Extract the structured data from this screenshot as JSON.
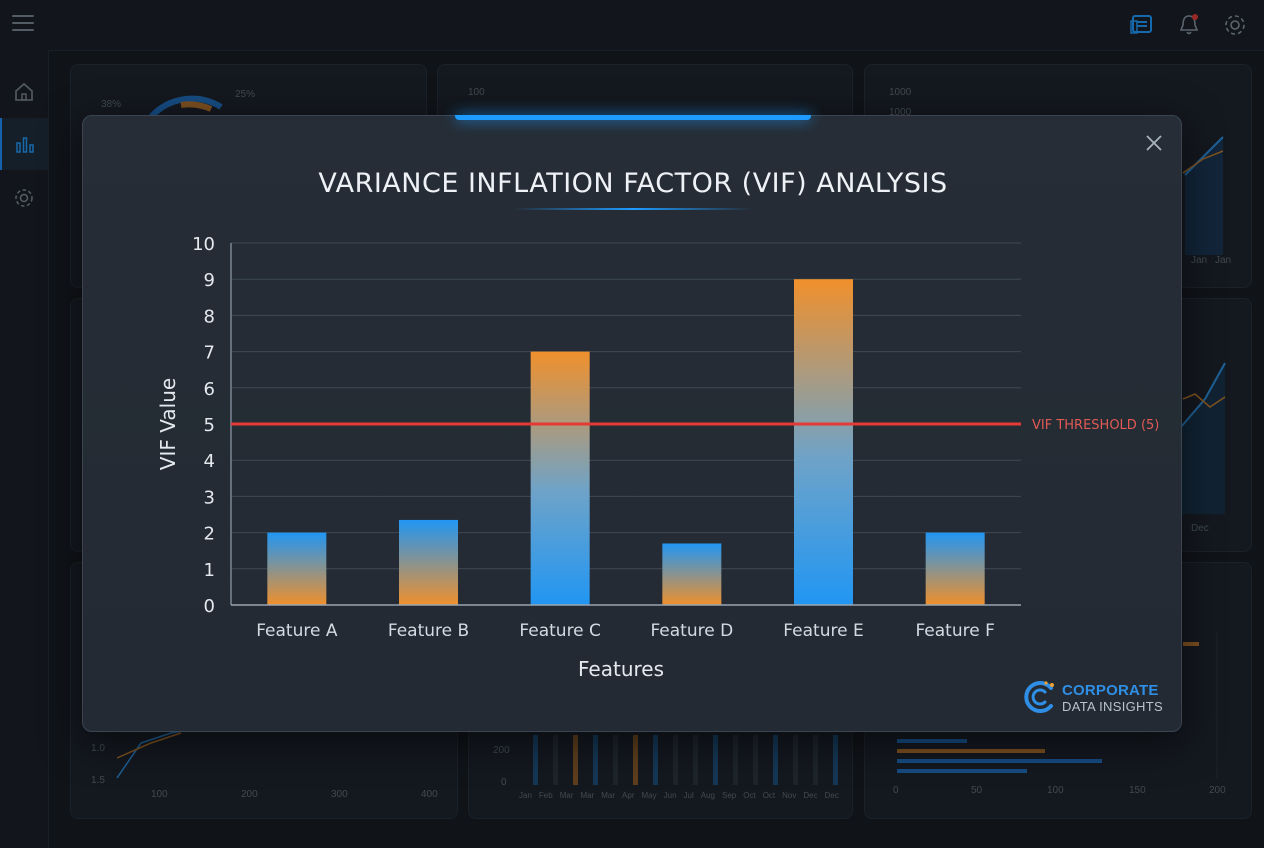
{
  "colors": {
    "accent": "#1e9bff",
    "bar_blue": "#2196f3",
    "bar_orange": "#f0902c",
    "threshold": "#e53935"
  },
  "header": {
    "icons": [
      "menu-icon",
      "database-icon",
      "bell-icon",
      "gear-icon"
    ]
  },
  "sidebar": {
    "items": [
      {
        "icon": "home-icon"
      },
      {
        "icon": "bar-chart-icon",
        "active": true
      },
      {
        "icon": "gear-icon"
      }
    ]
  },
  "background": {
    "card1_labels": [
      "38%",
      "25%"
    ],
    "card2_label": "100",
    "card3_labels": [
      "1000",
      "1000"
    ],
    "card3_months": [
      "Jan",
      "Jan"
    ],
    "card6_month": "Dec",
    "card7_y": [
      "1.0",
      "1.5"
    ],
    "card7_x": [
      "100",
      "200",
      "300",
      "400"
    ],
    "card8_y": [
      "200",
      "0"
    ],
    "card8_months": [
      "Jan",
      "Feb",
      "Mar",
      "Mar",
      "Mar",
      "Apr",
      "May",
      "Jun",
      "Jul",
      "Aug",
      "Sep",
      "Oct",
      "Oct",
      "Nov",
      "Dec",
      "Dec"
    ],
    "card9_x": [
      "0",
      "50",
      "100",
      "150",
      "200"
    ]
  },
  "modal": {
    "title": "VARIANCE INFLATION FACTOR (VIF) ANALYSIS",
    "logo_line1": "CORPORATE",
    "logo_line2": "DATA INSIGHTS"
  },
  "chart_data": {
    "type": "bar",
    "title": "VARIANCE INFLATION FACTOR (VIF) ANALYSIS",
    "xlabel": "Features",
    "ylabel": "VIF Value",
    "categories": [
      "Feature A",
      "Feature B",
      "Feature C",
      "Feature D",
      "Feature E",
      "Feature F"
    ],
    "values": [
      2,
      2.35,
      7,
      1.7,
      9,
      2
    ],
    "ylim": [
      0,
      10
    ],
    "yticks": [
      0,
      1,
      2,
      3,
      4,
      5,
      6,
      7,
      8,
      9,
      10
    ],
    "grid": true,
    "threshold": {
      "value": 5,
      "label": "VIF THRESHOLD (5)"
    }
  }
}
